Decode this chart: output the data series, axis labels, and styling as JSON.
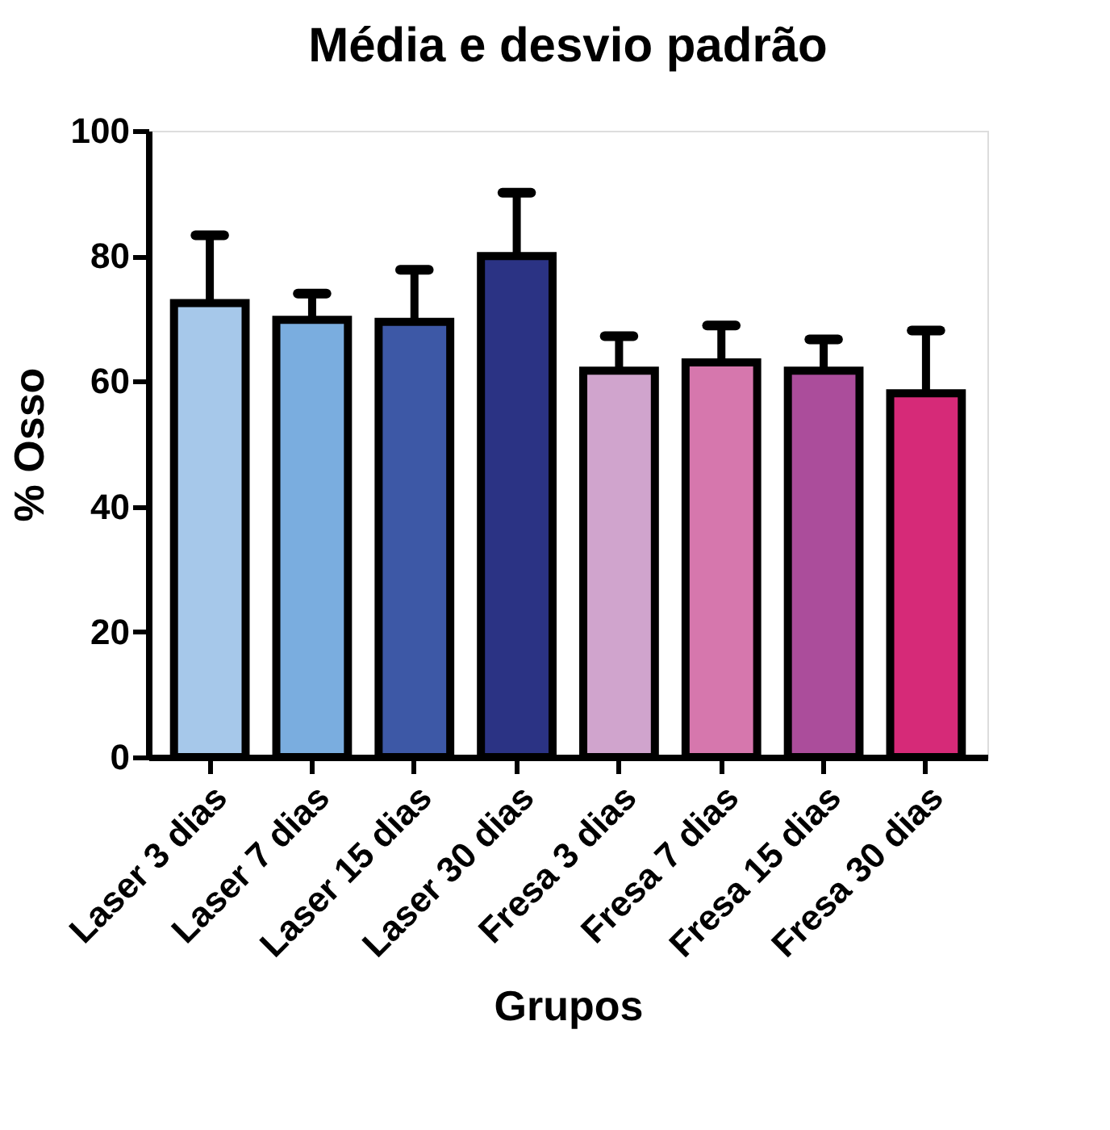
{
  "chart_data": {
    "type": "bar",
    "title": "Média e desvio padrão",
    "xlabel": "Grupos",
    "ylabel": "% Osso",
    "categories": [
      "Laser 3 dias",
      "Laser 7 dias",
      "Laser 15 dias",
      "Laser 30 dias",
      "Fresa 3 dias",
      "Fresa 7 dias",
      "Fresa 15 dias",
      "Fresa 30 dias"
    ],
    "values": [
      72.5,
      69.8,
      69.5,
      80.0,
      61.7,
      63.0,
      61.7,
      58.1
    ],
    "errors": [
      [
        72.5,
        83.3
      ],
      [
        69.8,
        74.0
      ],
      [
        69.5,
        77.8
      ],
      [
        80.0,
        90.1
      ],
      [
        61.7,
        67.2
      ],
      [
        63.0,
        68.9
      ],
      [
        61.7,
        66.7
      ],
      [
        58.1,
        68.1
      ]
    ],
    "colors": [
      "#a6c8ea",
      "#7aaddf",
      "#3d58a6",
      "#2b3384",
      "#d0a4cd",
      "#d677ad",
      "#ab4d9b",
      "#d62a78"
    ],
    "ylim": [
      0,
      100
    ],
    "yticks": [
      0,
      20,
      40,
      60,
      80,
      100
    ],
    "grid": false,
    "legend": false
  }
}
